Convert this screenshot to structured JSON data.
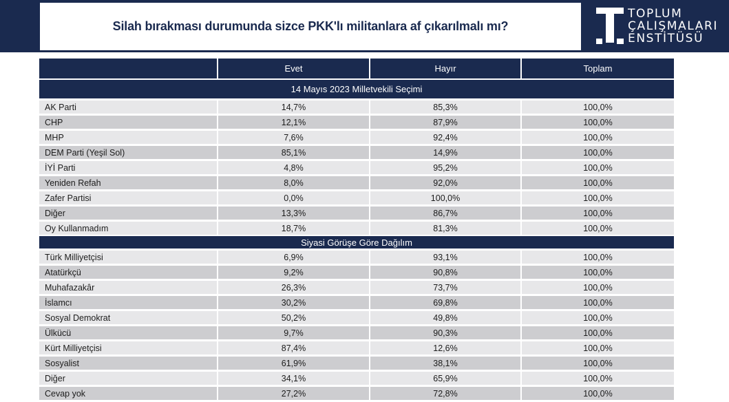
{
  "title": "Silah bırakması durumunda sizce PKK'lı militanlara af çıkarılmalı mı?",
  "logo": {
    "lines": [
      "TOPLUM",
      "ÇALIŞMALARI",
      "ENSTİTÜSÜ"
    ]
  },
  "colors": {
    "navy": "#1a2a4f",
    "row_light": "#e7e7e9",
    "row_dark": "#cdcdd0"
  },
  "chart_data": {
    "type": "table",
    "title": "Silah bırakması durumunda sizce PKK'lı militanlara af çıkarılmalı mı?",
    "columns": [
      "",
      "Evet",
      "Hayır",
      "Toplam"
    ],
    "sections": [
      {
        "name": "14 Mayıs 2023 Milletvekili Seçimi",
        "rows": [
          {
            "label": "AK Parti",
            "evet": "14,7%",
            "hayir": "85,3%",
            "toplam": "100,0%"
          },
          {
            "label": "CHP",
            "evet": "12,1%",
            "hayir": "87,9%",
            "toplam": "100,0%"
          },
          {
            "label": "MHP",
            "evet": "7,6%",
            "hayir": "92,4%",
            "toplam": "100,0%"
          },
          {
            "label": "DEM Parti (Yeşil Sol)",
            "evet": "85,1%",
            "hayir": "14,9%",
            "toplam": "100,0%"
          },
          {
            "label": "İYİ Parti",
            "evet": "4,8%",
            "hayir": "95,2%",
            "toplam": "100,0%"
          },
          {
            "label": "Yeniden Refah",
            "evet": "8,0%",
            "hayir": "92,0%",
            "toplam": "100,0%"
          },
          {
            "label": "Zafer Partisi",
            "evet": "0,0%",
            "hayir": "100,0%",
            "toplam": "100,0%"
          },
          {
            "label": "Diğer",
            "evet": "13,3%",
            "hayir": "86,7%",
            "toplam": "100,0%"
          },
          {
            "label": "Oy Kullanmadım",
            "evet": "18,7%",
            "hayir": "81,3%",
            "toplam": "100,0%"
          }
        ]
      },
      {
        "name": "Siyasi Görüşe Göre Dağılım",
        "rows": [
          {
            "label": "Türk Milliyetçisi",
            "evet": "6,9%",
            "hayir": "93,1%",
            "toplam": "100,0%"
          },
          {
            "label": "Atatürkçü",
            "evet": "9,2%",
            "hayir": "90,8%",
            "toplam": "100,0%"
          },
          {
            "label": "Muhafazakâr",
            "evet": "26,3%",
            "hayir": "73,7%",
            "toplam": "100,0%"
          },
          {
            "label": "İslamcı",
            "evet": "30,2%",
            "hayir": "69,8%",
            "toplam": "100,0%"
          },
          {
            "label": "Sosyal Demokrat",
            "evet": "50,2%",
            "hayir": "49,8%",
            "toplam": "100,0%"
          },
          {
            "label": "Ülkücü",
            "evet": "9,7%",
            "hayir": "90,3%",
            "toplam": "100,0%"
          },
          {
            "label": "Kürt Milliyetçisi",
            "evet": "87,4%",
            "hayir": "12,6%",
            "toplam": "100,0%"
          },
          {
            "label": "Sosyalist",
            "evet": "61,9%",
            "hayir": "38,1%",
            "toplam": "100,0%"
          },
          {
            "label": "Diğer",
            "evet": "34,1%",
            "hayir": "65,9%",
            "toplam": "100,0%"
          },
          {
            "label": "Cevap yok",
            "evet": "27,2%",
            "hayir": "72,8%",
            "toplam": "100,0%"
          }
        ]
      }
    ]
  }
}
